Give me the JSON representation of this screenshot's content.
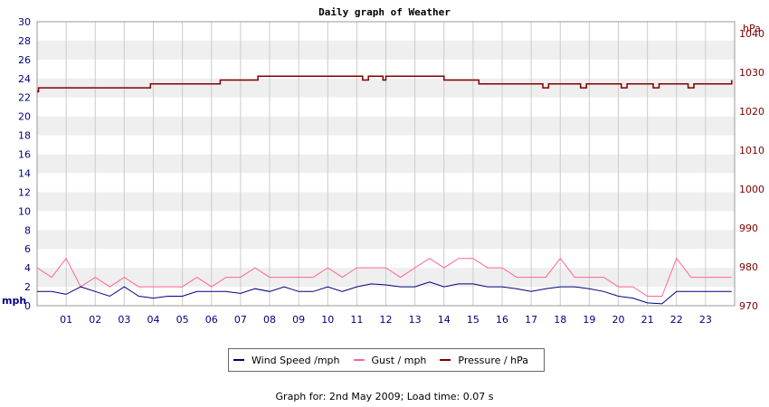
{
  "chart_data": {
    "type": "line",
    "title": "Daily graph of Weather",
    "left_axis": {
      "unit": "mph",
      "ylim": [
        0,
        30
      ],
      "ticks": [
        0,
        2,
        4,
        6,
        8,
        10,
        12,
        14,
        16,
        18,
        20,
        22,
        24,
        26,
        28,
        30
      ]
    },
    "right_axis": {
      "unit": "hPa",
      "ylim": [
        970,
        1043
      ],
      "ticks": [
        970,
        980,
        990,
        1000,
        1010,
        1020,
        1030,
        1040
      ]
    },
    "x_ticks": [
      "01",
      "02",
      "03",
      "04",
      "05",
      "06",
      "07",
      "08",
      "09",
      "10",
      "11",
      "12",
      "13",
      "14",
      "15",
      "16",
      "17",
      "18",
      "19",
      "20",
      "21",
      "22",
      "23"
    ],
    "xlim": [
      0,
      24
    ],
    "grid": true,
    "legend_position": "bottom-center",
    "colors": {
      "wind": "#000080",
      "gust": "#ff6699",
      "pressure": "#800000",
      "band": "#efefef",
      "grid": "#cccccc"
    },
    "series": [
      {
        "name": "Wind Speed /mph",
        "axis": "left",
        "x": [
          0,
          0.5,
          1,
          1.5,
          2,
          2.5,
          3,
          3.5,
          4,
          4.5,
          5,
          5.5,
          6,
          6.5,
          7,
          7.5,
          8,
          8.5,
          9,
          9.5,
          10,
          10.5,
          11,
          11.5,
          12,
          12.5,
          13,
          13.5,
          14,
          14.5,
          15,
          15.5,
          16,
          16.5,
          17,
          17.5,
          18,
          18.5,
          19,
          19.5,
          20,
          20.5,
          21,
          21.5,
          22,
          22.5,
          23,
          23.5,
          23.9
        ],
        "y": [
          1.5,
          1.5,
          1.2,
          2.0,
          1.5,
          1.0,
          2.0,
          1.0,
          0.8,
          1.0,
          1.0,
          1.5,
          1.5,
          1.5,
          1.3,
          1.8,
          1.5,
          2.0,
          1.5,
          1.5,
          2.0,
          1.5,
          2.0,
          2.3,
          2.2,
          2.0,
          2.0,
          2.5,
          2.0,
          2.3,
          2.3,
          2.0,
          2.0,
          1.8,
          1.5,
          1.8,
          2.0,
          2.0,
          1.8,
          1.5,
          1.0,
          0.8,
          0.3,
          0.2,
          1.5,
          1.5,
          1.5,
          1.5,
          1.5
        ]
      },
      {
        "name": "Gust / mph",
        "axis": "left",
        "x": [
          0,
          0.5,
          1,
          1.5,
          2,
          2.5,
          3,
          3.5,
          4,
          4.5,
          5,
          5.5,
          6,
          6.5,
          7,
          7.5,
          8,
          8.5,
          9,
          9.5,
          10,
          10.5,
          11,
          11.5,
          12,
          12.5,
          13,
          13.5,
          14,
          14.5,
          15,
          15.5,
          16,
          16.5,
          17,
          17.5,
          18,
          18.5,
          19,
          19.5,
          20,
          20.5,
          21,
          21.5,
          22,
          22.5,
          23,
          23.5,
          23.9
        ],
        "y": [
          4,
          3,
          5,
          2,
          3,
          2,
          3,
          2,
          2,
          2,
          2,
          3,
          2,
          3,
          3,
          4,
          3,
          3,
          3,
          3,
          4,
          3,
          4,
          4,
          4,
          3,
          4,
          5,
          4,
          5,
          5,
          4,
          4,
          3,
          3,
          3,
          5,
          3,
          3,
          3,
          2,
          2,
          1,
          1,
          5,
          3,
          3,
          3,
          3
        ]
      },
      {
        "name": "Pressure / hPa",
        "axis": "right",
        "x": [
          0,
          0.05,
          0.3,
          3.8,
          3.9,
          6.2,
          6.3,
          7.5,
          7.6,
          11.0,
          11.2,
          11.4,
          11.6,
          11.9,
          12.0,
          12.3,
          13.9,
          14.0,
          15.1,
          15.2,
          17.2,
          17.4,
          17.6,
          18.5,
          18.7,
          18.9,
          19.9,
          20.1,
          20.3,
          21.0,
          21.2,
          21.4,
          22.2,
          22.4,
          22.6,
          23.7,
          23.9
        ],
        "y": [
          1025,
          1026,
          1026,
          1026,
          1027,
          1027,
          1028,
          1028,
          1029,
          1029,
          1028,
          1029,
          1029,
          1028,
          1029,
          1029,
          1029,
          1028,
          1028,
          1027,
          1027,
          1026,
          1027,
          1027,
          1026,
          1027,
          1027,
          1026,
          1027,
          1027,
          1026,
          1027,
          1027,
          1026,
          1027,
          1027,
          1028
        ]
      }
    ]
  },
  "footer": "Graph for: 2nd May 2009; Load time: 0.07 s"
}
